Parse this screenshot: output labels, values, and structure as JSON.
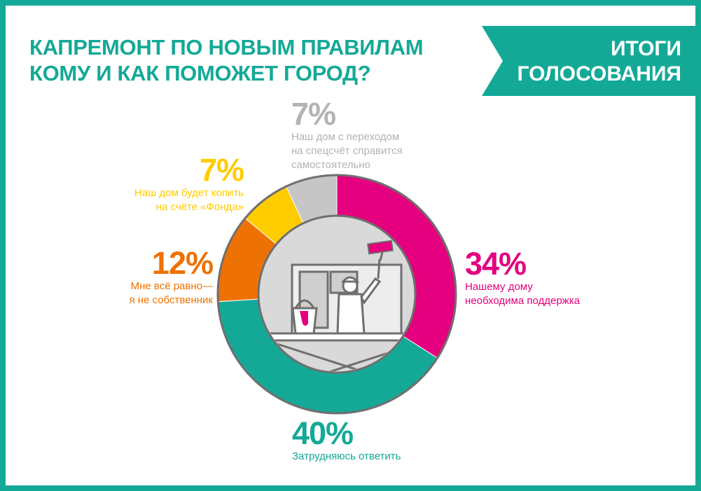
{
  "header": {
    "title_line1": "КАПРЕМОНТ ПО НОВЫМ ПРАВИЛАМ",
    "title_line2": "КОМУ И КАК ПОМОЖЕТ ГОРОД?",
    "banner_line1": "ИТОГИ",
    "banner_line2": "ГОЛОСОВАНИЯ"
  },
  "colors": {
    "frame": "#14a997",
    "magenta": "#e4007e",
    "teal": "#14a997",
    "orange": "#ee7203",
    "yellow": "#ffcc00",
    "gray": "#c6c6c6",
    "ring_outline": "#6f6f6f"
  },
  "chart_data": {
    "type": "pie",
    "title": "КАПРЕМОНТ ПО НОВЫМ ПРАВИЛАМ КОМУ И КАК ПОМОЖЕТ ГОРОД?",
    "slices": [
      {
        "value": 34,
        "label": "34%",
        "line1": "Нашему дому",
        "line2": "необходима поддержка",
        "line3": "",
        "color": "#e4007e"
      },
      {
        "value": 40,
        "label": "40%",
        "line1": "Затрудняюсь ответить",
        "line2": "",
        "line3": "",
        "color": "#14a997"
      },
      {
        "value": 12,
        "label": "12%",
        "line1": "Мне всё равно—",
        "line2": "я не собственник",
        "line3": "",
        "color": "#ee7203"
      },
      {
        "value": 7,
        "label": "7%",
        "line1": "Наш дом будет копить",
        "line2": "на счёте «Фонда»",
        "line3": "",
        "color": "#ffcc00"
      },
      {
        "value": 7,
        "label": "7%",
        "line1": "Наш дом с переходом",
        "line2": "на спецсчёт справится",
        "line3": "самостоятельно",
        "color": "#c6c6c6"
      }
    ],
    "start": "top",
    "direction": "clockwise",
    "style": "donut"
  }
}
